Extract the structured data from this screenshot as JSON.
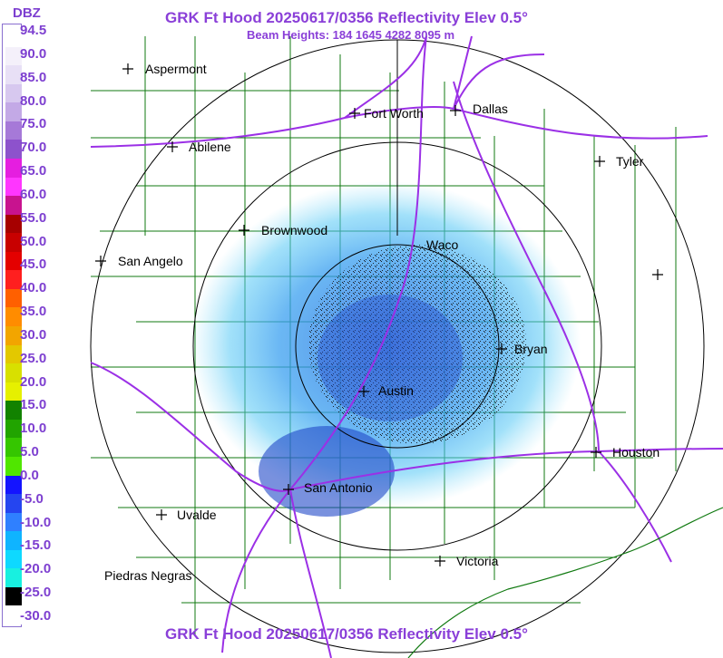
{
  "header": {
    "title": "GRK Ft Hood 20250617/0356 Reflectivity Elev 0.5°",
    "subtitle": "Beam Heights: 184 1645 4282 8095 m",
    "footer": "GRK Ft Hood 20250617/0356 Reflectivity Elev 0.5°"
  },
  "legend": {
    "title": "DBZ",
    "ticks": [
      "94.5",
      "90.0",
      "85.0",
      "80.0",
      "75.0",
      "70.0",
      "65.0",
      "60.0",
      "55.0",
      "50.0",
      "45.0",
      "40.0",
      "35.0",
      "30.0",
      "25.0",
      "20.0",
      "15.0",
      "10.0",
      "5.0",
      "0.0",
      "-5.0",
      "-10.0",
      "-15.0",
      "-20.0",
      "-25.0",
      "-30.0"
    ],
    "colors": [
      "#ffffff",
      "#f4f0fa",
      "#e8e0f6",
      "#d7c8ef",
      "#c3a9e6",
      "#a679d8",
      "#8d52cc",
      "#e51ee0",
      "#ff36ff",
      "#c8138f",
      "#a60000",
      "#c80000",
      "#e40000",
      "#ff1f1f",
      "#ff6000",
      "#ff8c00",
      "#f2a500",
      "#e3c800",
      "#d8e000",
      "#e6f000",
      "#128200",
      "#21a400",
      "#35c600",
      "#50e600",
      "#1414ff",
      "#2545f0",
      "#2f80ff",
      "#0fb4ff",
      "#0ed9ff",
      "#18f0e0",
      "#000000",
      "#ffffff"
    ]
  },
  "cities": [
    {
      "name": "Aspermont"
    },
    {
      "name": "Fort Worth"
    },
    {
      "name": "Dallas"
    },
    {
      "name": "Abilene"
    },
    {
      "name": "Tyler"
    },
    {
      "name": "Brownwood"
    },
    {
      "name": "Waco"
    },
    {
      "name": "San Angelo"
    },
    {
      "name": "Bryan"
    },
    {
      "name": "Austin"
    },
    {
      "name": "Houston"
    },
    {
      "name": "San Antonio"
    },
    {
      "name": "Uvalde"
    },
    {
      "name": "Victoria"
    },
    {
      "name": "Piedras Negras"
    },
    {
      "name": ""
    }
  ]
}
